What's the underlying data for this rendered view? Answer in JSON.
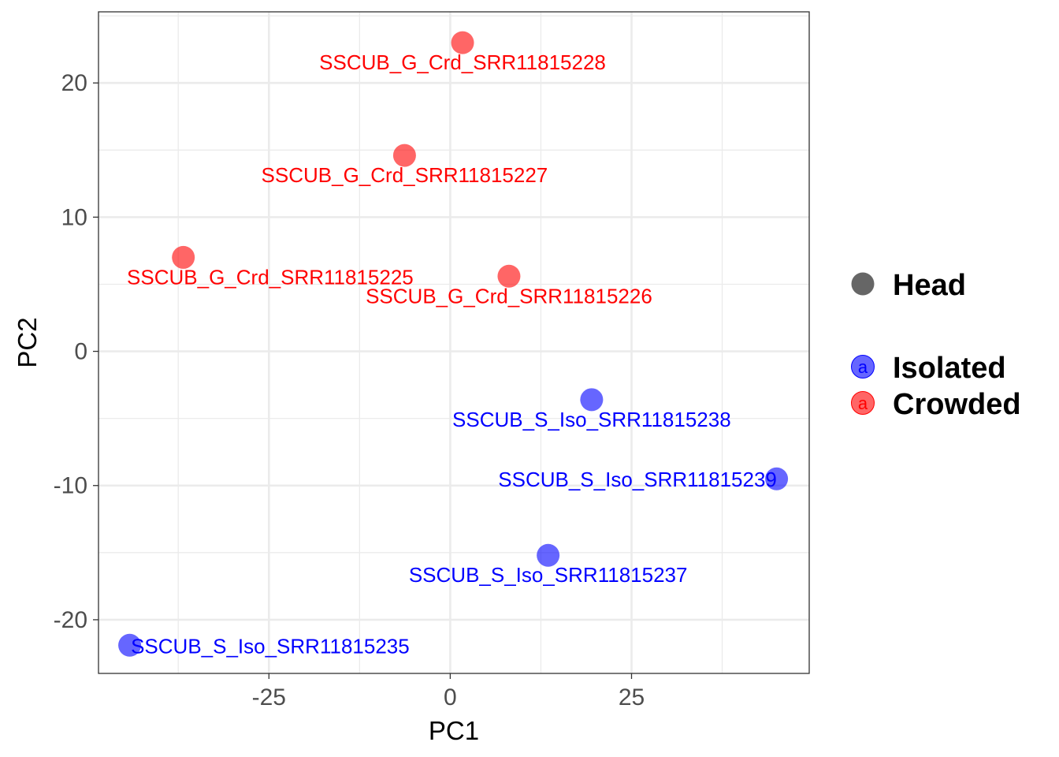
{
  "chart_data": {
    "type": "scatter",
    "title": "",
    "xlabel": "PC1",
    "ylabel": "PC2",
    "xlim": [
      -48.5,
      49.5
    ],
    "ylim": [
      -24,
      25.3
    ],
    "x_ticks": [
      -25,
      0,
      25
    ],
    "y_ticks": [
      -20,
      -10,
      0,
      10,
      20
    ],
    "grid": true,
    "legend_position": "right",
    "legend": {
      "shape": {
        "label": "Head",
        "color": "#666666"
      },
      "groups": [
        {
          "label": "Isolated",
          "color": "#0000ff",
          "glyph": "a"
        },
        {
          "label": "Crowded",
          "color": "#ff0000",
          "glyph": "a"
        }
      ]
    },
    "series": [
      {
        "name": "Isolated",
        "color": "#0000ff",
        "points": [
          {
            "label": "SSCUB_S_Iso_SRR11815235",
            "x": -44.2,
            "y": -21.9
          },
          {
            "label": "SSCUB_S_Iso_SRR11815237",
            "x": 13.5,
            "y": -15.2
          },
          {
            "label": "SSCUB_S_Iso_SRR11815238",
            "x": 19.5,
            "y": -3.6
          },
          {
            "label": "SSCUB_S_Iso_SRR11815239",
            "x": 45.0,
            "y": -9.5
          }
        ]
      },
      {
        "name": "Crowded",
        "color": "#ff0000",
        "points": [
          {
            "label": "SSCUB_G_Crd_SRR11815225",
            "x": -36.8,
            "y": 7.0
          },
          {
            "label": "SSCUB_G_Crd_SRR11815226",
            "x": 8.1,
            "y": 5.6
          },
          {
            "label": "SSCUB_G_Crd_SRR11815227",
            "x": -6.3,
            "y": 14.6
          },
          {
            "label": "SSCUB_G_Crd_SRR11815228",
            "x": 1.7,
            "y": 23.0
          }
        ]
      }
    ]
  }
}
